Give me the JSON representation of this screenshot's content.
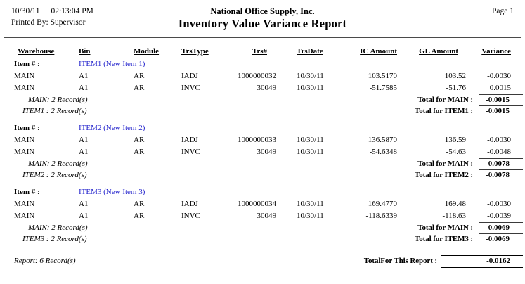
{
  "page": {
    "date": "10/30/11",
    "time": "02:13:04 PM",
    "printed_by_label": "Printed By:",
    "printed_by": "Supervisor",
    "company": "National Office Supply, Inc.",
    "title": "Inventory Value Variance Report",
    "page_label": "Page 1"
  },
  "colors": {
    "item_link_blue": "#2323CC",
    "text": "#000000",
    "rule": "#3A3A3A"
  },
  "table": {
    "columns": {
      "warehouse": "Warehouse",
      "bin": "Bin",
      "module": "Module",
      "trstype": "TrsType",
      "trs": "Trs#",
      "trsdate": "TrsDate",
      "ic": "IC Amount",
      "gl": "GL Amount",
      "variance": "Variance"
    },
    "item_label": "Item # :",
    "groups": [
      {
        "item": "ITEM1 (New Item 1)",
        "rows": [
          {
            "warehouse": "MAIN",
            "bin": "A1",
            "module": "AR",
            "trstype": "IADJ",
            "trs": "1000000032",
            "trsdate": "10/30/11",
            "ic": "103.5170",
            "gl": "103.52",
            "variance": "-0.0030"
          },
          {
            "warehouse": "MAIN",
            "bin": "A1",
            "module": "AR",
            "trstype": "INVC",
            "trs": "30049",
            "trsdate": "10/30/11",
            "ic": "-51.7585",
            "gl": "-51.76",
            "variance": "0.0015"
          }
        ],
        "warehouse_count": "MAIN: 2 Record(s)",
        "warehouse_total_label": "Total for MAIN :",
        "warehouse_total": "-0.0015",
        "item_count": "ITEM1 : 2 Record(s)",
        "item_total_label": "Total for ITEM1 :",
        "item_total": "-0.0015"
      },
      {
        "item": "ITEM2 (New Item 2)",
        "rows": [
          {
            "warehouse": "MAIN",
            "bin": "A1",
            "module": "AR",
            "trstype": "IADJ",
            "trs": "1000000033",
            "trsdate": "10/30/11",
            "ic": "136.5870",
            "gl": "136.59",
            "variance": "-0.0030"
          },
          {
            "warehouse": "MAIN",
            "bin": "A1",
            "module": "AR",
            "trstype": "INVC",
            "trs": "30049",
            "trsdate": "10/30/11",
            "ic": "-54.6348",
            "gl": "-54.63",
            "variance": "-0.0048"
          }
        ],
        "warehouse_count": "MAIN: 2 Record(s)",
        "warehouse_total_label": "Total for MAIN :",
        "warehouse_total": "-0.0078",
        "item_count": "ITEM2 : 2 Record(s)",
        "item_total_label": "Total for ITEM2 :",
        "item_total": "-0.0078"
      },
      {
        "item": "ITEM3 (New Item 3)",
        "rows": [
          {
            "warehouse": "MAIN",
            "bin": "A1",
            "module": "AR",
            "trstype": "IADJ",
            "trs": "1000000034",
            "trsdate": "10/30/11",
            "ic": "169.4770",
            "gl": "169.48",
            "variance": "-0.0030"
          },
          {
            "warehouse": "MAIN",
            "bin": "A1",
            "module": "AR",
            "trstype": "INVC",
            "trs": "30049",
            "trsdate": "10/30/11",
            "ic": "-118.6339",
            "gl": "-118.63",
            "variance": "-0.0039"
          }
        ],
        "warehouse_count": "MAIN: 2 Record(s)",
        "warehouse_total_label": "Total for MAIN :",
        "warehouse_total": "-0.0069",
        "item_count": "ITEM3 : 2 Record(s)",
        "item_total_label": "Total for ITEM3 :",
        "item_total": "-0.0069"
      }
    ],
    "report_count": "Report: 6 Record(s)",
    "report_total_label": "TotalFor This Report :",
    "report_total": "-0.0162"
  }
}
